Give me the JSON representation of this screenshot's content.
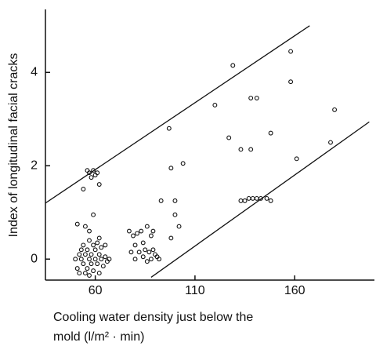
{
  "chart_data": {
    "type": "scatter",
    "x_label": [
      "Cooling water density just below the",
      "mold  (l/m² · min)"
    ],
    "y_label": "Index of longitudinal facial cracks",
    "xlim": [
      35,
      200
    ],
    "ylim": [
      -0.45,
      5.35
    ],
    "xticks": [
      60,
      110,
      160
    ],
    "yticks": [
      0,
      2,
      4
    ],
    "color": "#111111",
    "series": [
      {
        "x": [
          50,
          51,
          52,
          52,
          53,
          53,
          54,
          54,
          55,
          55,
          56,
          56,
          57,
          57,
          57,
          58,
          58,
          59,
          59,
          60,
          60,
          61,
          61,
          62,
          62,
          63,
          63,
          64,
          65,
          65,
          66,
          67,
          55,
          57,
          59,
          62,
          51,
          54,
          56,
          57,
          58,
          59,
          60,
          61,
          62,
          77,
          78,
          79,
          80,
          80,
          81,
          82,
          83,
          84,
          84,
          85,
          86,
          86,
          87,
          88,
          88,
          89,
          90,
          91,
          92,
          89,
          93,
          97,
          98,
          98,
          100,
          100,
          102,
          104,
          120,
          127,
          129,
          133,
          138,
          138,
          141,
          133,
          135,
          137,
          139,
          141,
          143,
          146,
          148,
          148,
          158,
          158,
          161,
          178,
          180
        ],
        "y": [
          0.0,
          -0.2,
          0.1,
          -0.3,
          0.2,
          0.0,
          -0.1,
          0.3,
          -0.3,
          0.1,
          0.2,
          -0.2,
          0.4,
          0.0,
          -0.35,
          0.1,
          -0.1,
          0.3,
          -0.25,
          0.0,
          0.2,
          -0.1,
          0.35,
          0.1,
          -0.3,
          0.25,
          0.0,
          -0.15,
          0.3,
          0.05,
          -0.05,
          0.0,
          0.7,
          0.6,
          0.95,
          0.45,
          0.75,
          1.5,
          1.9,
          1.85,
          1.75,
          1.9,
          1.8,
          1.85,
          1.6,
          0.6,
          0.15,
          0.5,
          0.0,
          0.3,
          0.55,
          0.15,
          0.6,
          0.05,
          0.35,
          0.2,
          0.7,
          -0.05,
          0.15,
          0.5,
          0.0,
          0.2,
          0.1,
          0.05,
          0.0,
          0.6,
          1.25,
          2.8,
          0.45,
          1.95,
          0.95,
          1.25,
          0.7,
          2.05,
          3.3,
          2.6,
          4.15,
          2.35,
          2.35,
          3.45,
          3.45,
          1.25,
          1.25,
          1.3,
          1.3,
          1.3,
          1.3,
          1.3,
          1.25,
          2.7,
          4.45,
          3.8,
          2.15,
          2.5,
          3.2
        ]
      }
    ],
    "lines": [
      {
        "x": [
          35,
          167.5
        ],
        "y": [
          1.2,
          5.0
        ]
      },
      {
        "x": [
          88,
          197.4
        ],
        "y": [
          -0.39,
          2.94
        ]
      }
    ]
  }
}
